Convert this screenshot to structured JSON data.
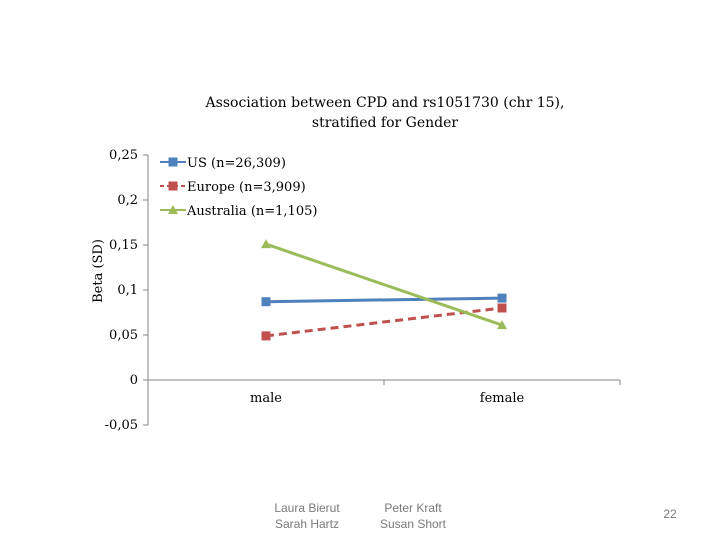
{
  "chart_data": {
    "type": "line",
    "title": [
      "Association between CPD and rs1051730 (chr 15),",
      "stratified for Gender"
    ],
    "ylabel": "Beta (SD)",
    "xlabel": "",
    "categories": [
      "male",
      "female"
    ],
    "ylim": [
      -0.05,
      0.25
    ],
    "yticks": [
      -0.05,
      0,
      0.05,
      0.1,
      0.15,
      0.2,
      0.25
    ],
    "ytick_labels": [
      "-0,05",
      "0",
      "0,05",
      "0,1",
      "0,15",
      "0,2",
      "0,25"
    ],
    "grid": false,
    "legend_position": "top-left",
    "series": [
      {
        "name": "US (n=26,309)",
        "values": [
          0.087,
          0.091
        ],
        "color": "#4f81bd",
        "marker": "square",
        "dash": "solid"
      },
      {
        "name": "Europe (n=3,909)",
        "values": [
          0.049,
          0.08
        ],
        "color": "#c0504d",
        "marker": "square",
        "dash": "dashed"
      },
      {
        "name": "Australia (n=1,105)",
        "values": [
          0.151,
          0.061
        ],
        "color": "#9bbb59",
        "marker": "triangle",
        "dash": "solid"
      }
    ]
  },
  "footer": {
    "credit_left": [
      "Laura Bierut",
      "Sarah Hartz"
    ],
    "credit_right": [
      "Peter Kraft",
      "Susan Short"
    ],
    "page_number": "22"
  }
}
